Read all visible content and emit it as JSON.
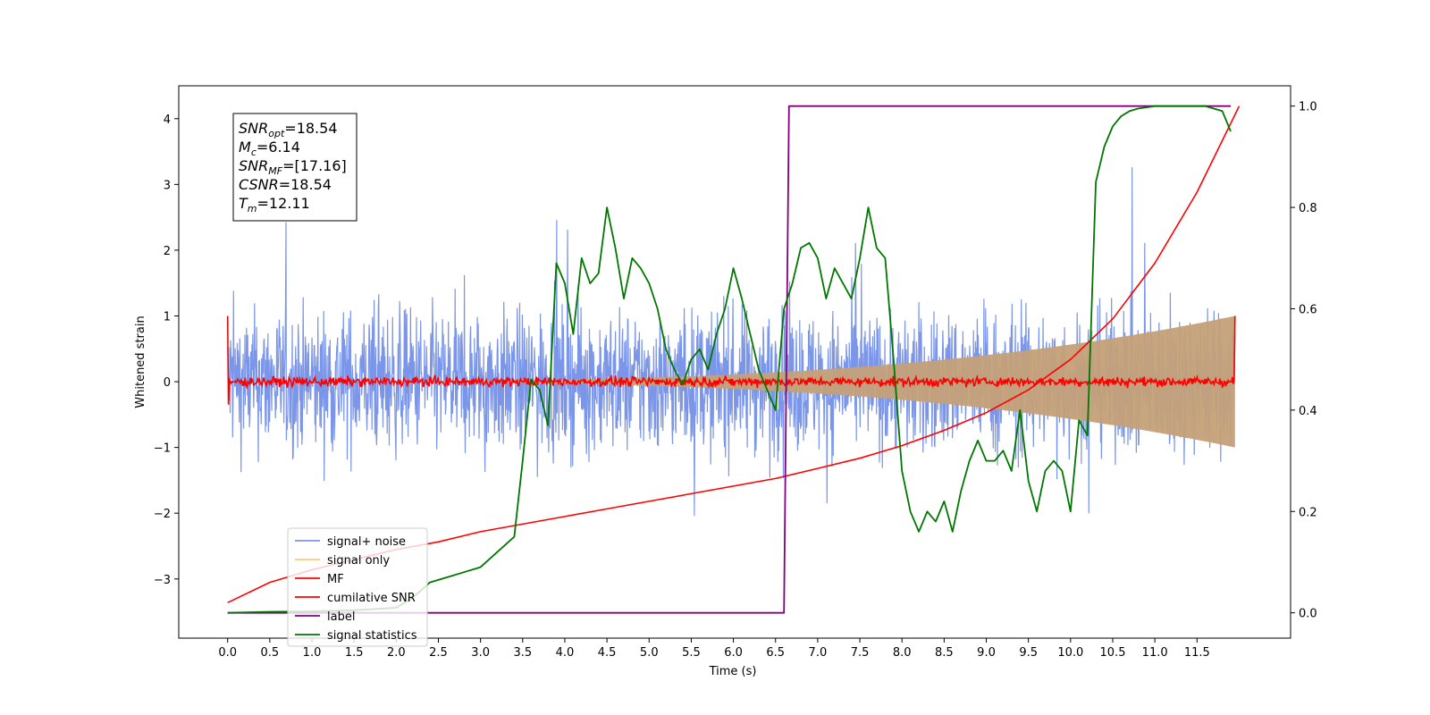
{
  "chart_data": {
    "type": "line",
    "xlabel": "Time (s)",
    "ylabel_left": "Whitened strain",
    "ylabel_right": "",
    "xlim": [
      -0.58,
      12.61
    ],
    "ylim_left": [
      -3.9,
      4.5
    ],
    "ylim_right": [
      -0.05,
      1.04
    ],
    "x_ticks": [
      "0.0",
      "0.5",
      "1.0",
      "1.5",
      "2.0",
      "2.5",
      "3.0",
      "3.5",
      "4.0",
      "4.5",
      "5.0",
      "5.5",
      "6.0",
      "6.5",
      "7.0",
      "7.5",
      "8.0",
      "8.5",
      "9.0",
      "9.5",
      "10.0",
      "10.5",
      "11.0",
      "11.5"
    ],
    "y_ticks_left": [
      "4",
      "3",
      "2",
      "1",
      "0",
      "−1",
      "−2",
      "−3"
    ],
    "y_ticks_right": [
      "1.0",
      "0.8",
      "0.6",
      "0.4",
      "0.2",
      "0.0"
    ],
    "grid": false,
    "legend_position": "lower-left",
    "annotations": [
      {
        "var": "SNR",
        "sub": "opt",
        "rest": "=18.54"
      },
      {
        "var": "M",
        "sub": "c",
        "rest": "=6.14"
      },
      {
        "var": "SNR",
        "sub": "MF",
        "rest": "=[17.16]"
      },
      {
        "var": "CSNR",
        "sub": "",
        "rest": "=18.54"
      },
      {
        "var": "T",
        "sub": "m",
        "rest": "=12.11"
      }
    ],
    "series": [
      {
        "name": "signal+ noise",
        "color": "#7b96e8",
        "axis": "left",
        "kind": "noisy",
        "amplitude": 1.7
      },
      {
        "name": "signal only",
        "color": "#ffc97a",
        "axis": "left",
        "kind": "chirp_envelope",
        "start_amp": 0.0,
        "end_amp": 1.0
      },
      {
        "name": "MF",
        "color": "#ff0000",
        "axis": "left",
        "kind": "noisy_small",
        "amplitude": 0.05,
        "edge_values": [
          1.0,
          1.0
        ]
      },
      {
        "name": "cumilative SNR",
        "color": "#ff0000",
        "axis": "right",
        "x": [
          0.0,
          0.5,
          1.0,
          1.5,
          2.0,
          2.5,
          3.0,
          3.5,
          4.0,
          4.5,
          5.0,
          5.5,
          6.0,
          6.5,
          7.0,
          7.5,
          8.0,
          8.5,
          9.0,
          9.5,
          10.0,
          10.5,
          11.0,
          11.5,
          12.0
        ],
        "values": [
          0.02,
          0.06,
          0.085,
          0.105,
          0.125,
          0.14,
          0.16,
          0.175,
          0.19,
          0.205,
          0.22,
          0.235,
          0.25,
          0.265,
          0.285,
          0.305,
          0.33,
          0.36,
          0.395,
          0.44,
          0.5,
          0.58,
          0.69,
          0.83,
          1.0
        ]
      },
      {
        "name": "label",
        "color": "#800080",
        "axis": "right",
        "x": [
          0.0,
          6.6,
          6.66,
          11.9
        ],
        "values": [
          0.0,
          0.0,
          1.0,
          1.0
        ]
      },
      {
        "name": "signal statistics",
        "color": "#007700",
        "axis": "right",
        "x": [
          0.0,
          0.5,
          1.0,
          1.5,
          2.0,
          2.2,
          2.4,
          2.6,
          2.8,
          3.0,
          3.2,
          3.4,
          3.5,
          3.6,
          3.7,
          3.8,
          3.9,
          4.0,
          4.1,
          4.2,
          4.3,
          4.4,
          4.5,
          4.6,
          4.7,
          4.8,
          4.9,
          5.0,
          5.1,
          5.2,
          5.3,
          5.4,
          5.5,
          5.6,
          5.7,
          5.8,
          5.9,
          6.0,
          6.1,
          6.2,
          6.3,
          6.4,
          6.5,
          6.6,
          6.7,
          6.8,
          6.9,
          7.0,
          7.1,
          7.2,
          7.3,
          7.4,
          7.5,
          7.6,
          7.7,
          7.8,
          7.9,
          8.0,
          8.1,
          8.2,
          8.3,
          8.4,
          8.5,
          8.6,
          8.7,
          8.8,
          8.9,
          9.0,
          9.1,
          9.2,
          9.3,
          9.4,
          9.5,
          9.6,
          9.7,
          9.8,
          9.9,
          10.0,
          10.1,
          10.2,
          10.3,
          10.4,
          10.5,
          10.6,
          10.7,
          10.8,
          11.0,
          11.2,
          11.4,
          11.6,
          11.8,
          11.9
        ],
        "values": [
          0.0,
          0.002,
          0.003,
          0.005,
          0.01,
          0.03,
          0.06,
          0.07,
          0.08,
          0.09,
          0.12,
          0.15,
          0.3,
          0.46,
          0.44,
          0.37,
          0.69,
          0.65,
          0.55,
          0.7,
          0.65,
          0.67,
          0.8,
          0.72,
          0.62,
          0.7,
          0.68,
          0.65,
          0.6,
          0.52,
          0.48,
          0.45,
          0.5,
          0.52,
          0.48,
          0.55,
          0.6,
          0.68,
          0.62,
          0.55,
          0.48,
          0.44,
          0.4,
          0.6,
          0.65,
          0.72,
          0.73,
          0.7,
          0.62,
          0.68,
          0.65,
          0.62,
          0.7,
          0.8,
          0.72,
          0.7,
          0.5,
          0.28,
          0.2,
          0.16,
          0.2,
          0.18,
          0.22,
          0.16,
          0.24,
          0.3,
          0.34,
          0.3,
          0.3,
          0.32,
          0.28,
          0.4,
          0.26,
          0.2,
          0.28,
          0.3,
          0.28,
          0.2,
          0.38,
          0.35,
          0.85,
          0.92,
          0.96,
          0.98,
          0.99,
          0.995,
          1.0,
          1.0,
          1.0,
          1.0,
          0.99,
          0.95
        ]
      }
    ]
  }
}
